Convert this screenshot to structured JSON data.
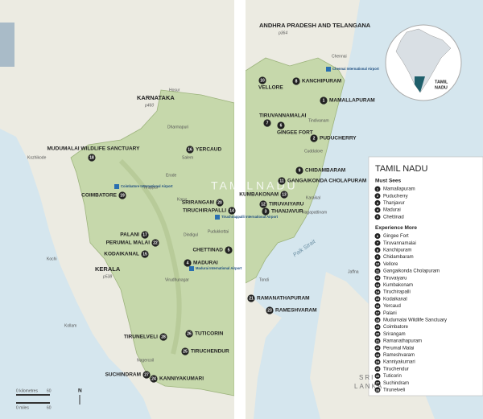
{
  "map": {
    "regions": [
      {
        "label": "KARNATAKA",
        "page": "p460"
      },
      {
        "label": "KERALA",
        "page": "p538"
      },
      {
        "label": "ANDHRA PRADESH AND TELANGANA",
        "page": "p364"
      }
    ],
    "state_label": [
      "TAMIL",
      "NADU"
    ],
    "towns": [
      "Chennai",
      "Salem",
      "Erode",
      "Tiruppur",
      "Karur",
      "Dindigul",
      "Pudukkottai",
      "Cuddalore",
      "Karaikal",
      "Nagapattinam",
      "Kozhikode",
      "Kochi",
      "Kollam",
      "Nagercoil",
      "Dharmapuri",
      "Tindivanam",
      "Hosur",
      "Virudhunagar",
      "Jaffna",
      "Tondi"
    ],
    "water": [
      "Palk Strait"
    ],
    "country_lines": [
      "SRI",
      "LANKA"
    ],
    "airports": [
      "Chennai International Airport",
      "Coimbatore International Airport",
      "Tiruchirappalli International Airport",
      "Madurai International Airport"
    ],
    "markers": [
      {
        "number": 18,
        "label": "MUDUMALAI WILDLIFE SANCTUARY"
      },
      {
        "number": 16,
        "label": "YERCAUD"
      },
      {
        "number": 19,
        "label": "COIMBATORE"
      },
      {
        "number": 17,
        "label": "PALANI"
      },
      {
        "number": 22,
        "label": "PERUMAL MALAI"
      },
      {
        "number": 15,
        "label": "KODAIKANAL"
      },
      {
        "number": 20,
        "label": "SRIRANGAM"
      },
      {
        "number": 14,
        "label": "TIRUCHIRAPALLI"
      },
      {
        "number": 5,
        "label": "CHETTINAD"
      },
      {
        "number": 4,
        "label": "MADURAI"
      },
      {
        "number": 28,
        "label": "TIRUNELVELI"
      },
      {
        "number": 26,
        "label": "TUTICORIN"
      },
      {
        "number": 25,
        "label": "TIRUCHENDUR"
      },
      {
        "number": 27,
        "label": "SUCHINDRAM"
      },
      {
        "number": 24,
        "label": "KANNIYAKUMARI"
      },
      {
        "number": 10,
        "label": "VELLORE"
      },
      {
        "number": 8,
        "label": "KANCHIPURAM"
      },
      {
        "number": 1,
        "label": "MAMALLAPURAM"
      },
      {
        "number": 7,
        "label": "TIRUVANNAMALAI"
      },
      {
        "number": 6,
        "label": "GINGEE FORT"
      },
      {
        "number": 2,
        "label": "PUDUCHERRY"
      },
      {
        "number": 9,
        "label": "CHIDAMBARAM"
      },
      {
        "number": 11,
        "label": "GANGAIKONDA CHOLAPURAM"
      },
      {
        "number": 13,
        "label": "KUMBAKONAM"
      },
      {
        "number": 12,
        "label": "TIRUVAIYARU"
      },
      {
        "number": 3,
        "label": "THANJAVUR"
      },
      {
        "number": 21,
        "label": "RAMANATHAPURAM"
      },
      {
        "number": 23,
        "label": "RAMESHVARAM"
      }
    ]
  },
  "inset": {
    "label_lines": [
      "TAMIL",
      "NADU"
    ]
  },
  "legend": {
    "title": "TAMIL NADU",
    "sections": [
      {
        "heading": "Must Sees",
        "items": [
          {
            "number": 1,
            "name": "Mamallapuram"
          },
          {
            "number": 2,
            "name": "Puducherry"
          },
          {
            "number": 3,
            "name": "Thanjavur"
          },
          {
            "number": 4,
            "name": "Madurai"
          },
          {
            "number": 5,
            "name": "Chettinad"
          }
        ]
      },
      {
        "heading": "Experience More",
        "items": [
          {
            "number": 6,
            "name": "Gingee Fort"
          },
          {
            "number": 7,
            "name": "Tiruvannamalai"
          },
          {
            "number": 8,
            "name": "Kanchipuram"
          },
          {
            "number": 9,
            "name": "Chidambaram"
          },
          {
            "number": 10,
            "name": "Vellore"
          },
          {
            "number": 11,
            "name": "Gangaikonda Cholapuram"
          },
          {
            "number": 12,
            "name": "Tiruvaiyaru"
          },
          {
            "number": 13,
            "name": "Kumbakonam"
          },
          {
            "number": 14,
            "name": "Tiruchirapalli"
          },
          {
            "number": 15,
            "name": "Kodaikanal"
          },
          {
            "number": 16,
            "name": "Yercaud"
          },
          {
            "number": 17,
            "name": "Palani"
          },
          {
            "number": 18,
            "name": "Mudumalai Wildlife Sanctuary"
          },
          {
            "number": 19,
            "name": "Coimbatore"
          },
          {
            "number": 20,
            "name": "Srirangam"
          },
          {
            "number": 21,
            "name": "Ramanathapuram"
          },
          {
            "number": 22,
            "name": "Perumal Malai"
          },
          {
            "number": 23,
            "name": "Rameshvaram"
          },
          {
            "number": 24,
            "name": "Kanniyakumari"
          },
          {
            "number": 25,
            "name": "Tiruchendur"
          },
          {
            "number": 26,
            "name": "Tuticorin"
          },
          {
            "number": 27,
            "name": "Suchindram"
          },
          {
            "number": 28,
            "name": "Tirunelveli"
          }
        ]
      }
    ]
  },
  "scale": {
    "km_label": "0 kilometres",
    "km_max": "60",
    "mi_label": "0 miles",
    "mi_max": "60",
    "north": "N"
  }
}
